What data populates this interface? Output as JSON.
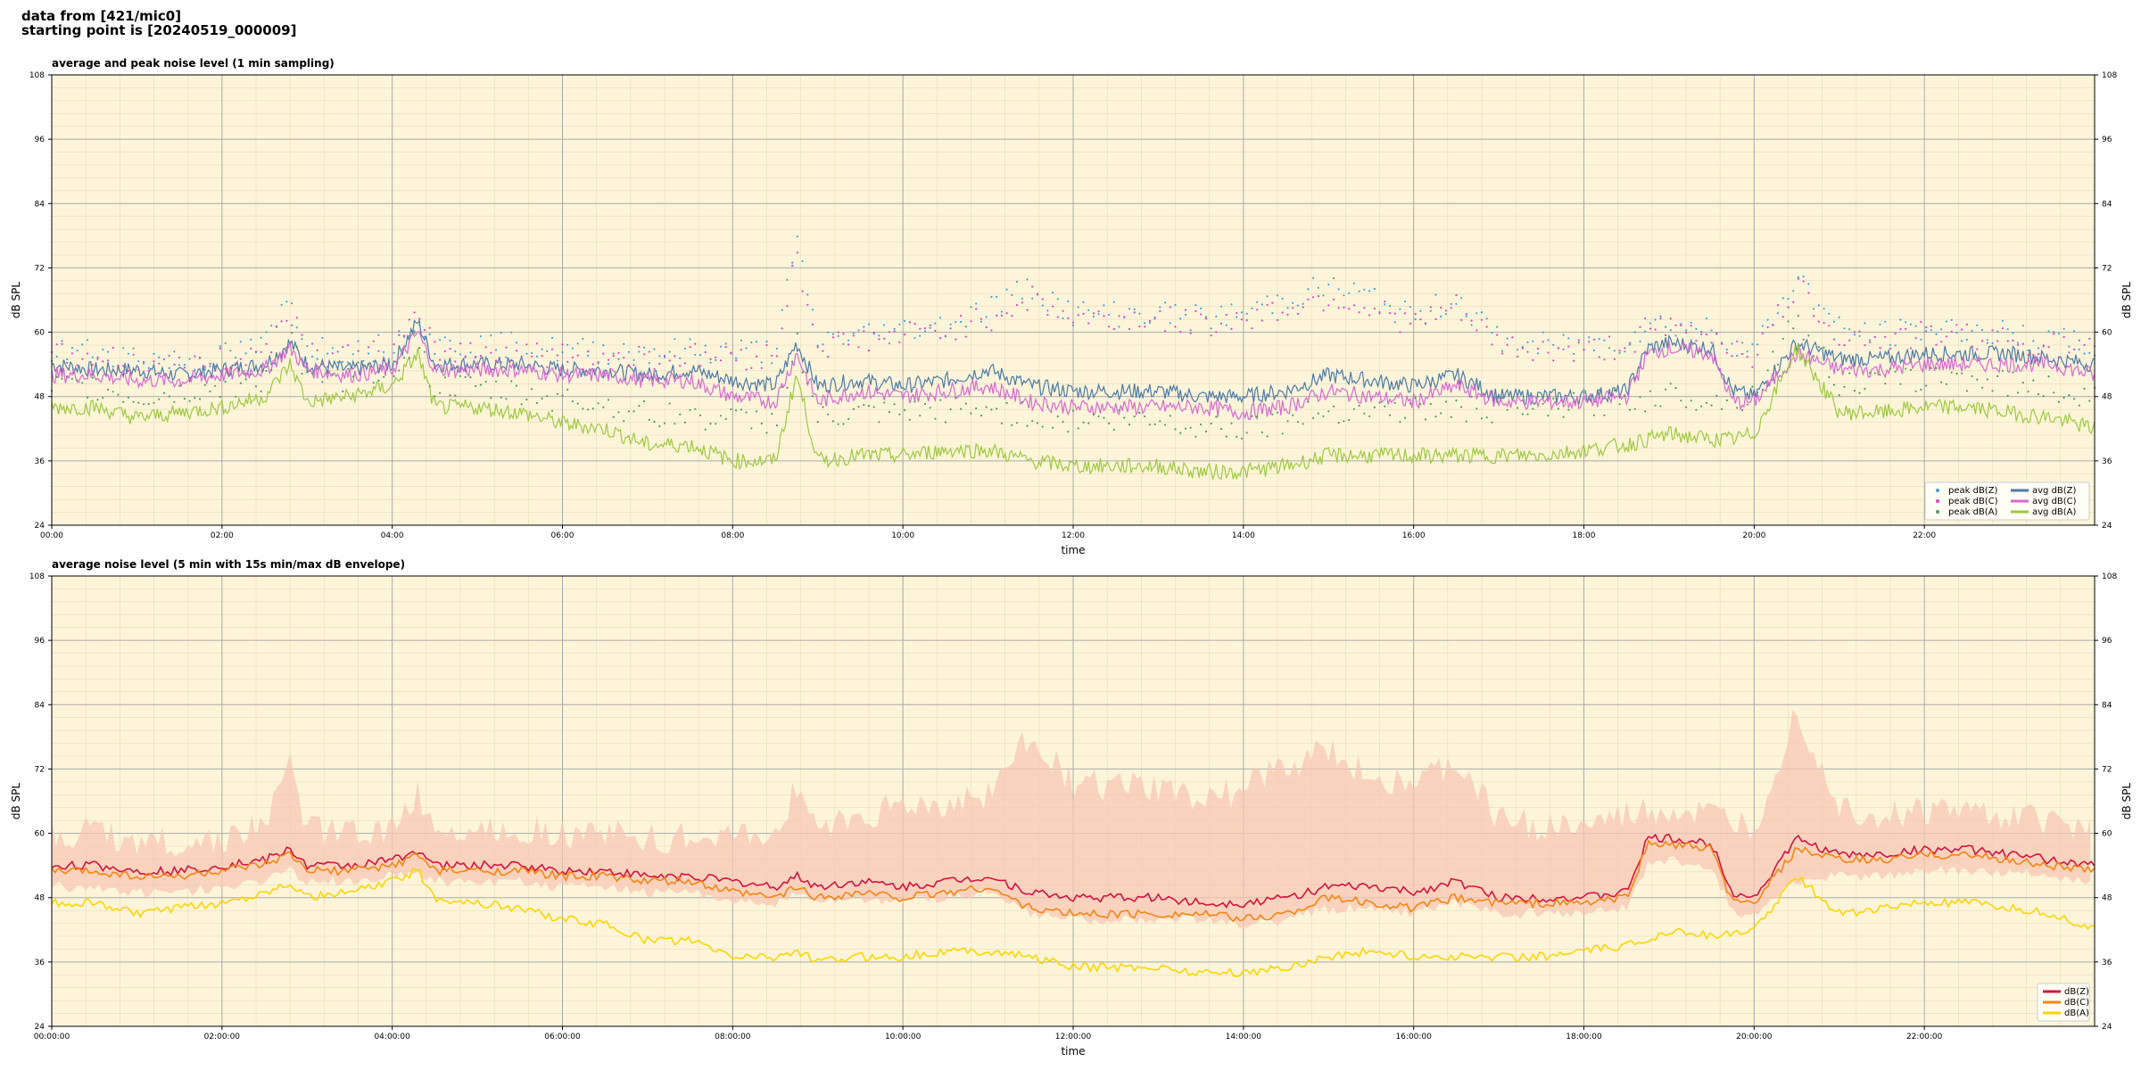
{
  "header": {
    "line1": "data from [421/mic0]",
    "line2": "starting point is [20240519_000009]"
  },
  "chart_data": [
    {
      "type": "line",
      "title": "average and peak noise level (1 min sampling)",
      "xlabel": "time",
      "ylabel": "dB SPL",
      "xlim_hours": [
        0,
        24
      ],
      "ylim": [
        24,
        108
      ],
      "yticks": [
        24,
        36,
        48,
        60,
        72,
        84,
        96,
        108
      ],
      "xticks_hours": [
        0,
        2,
        4,
        6,
        8,
        10,
        12,
        14,
        16,
        18,
        20,
        22
      ],
      "xtick_labels": [
        "00:00",
        "02:00",
        "04:00",
        "06:00",
        "08:00",
        "10:00",
        "12:00",
        "14:00",
        "16:00",
        "18:00",
        "20:00",
        "22:00"
      ],
      "grid": true,
      "legend_position": "lower-right",
      "background": "#fdf5da",
      "x_hours": [
        0,
        0.5,
        1,
        1.5,
        2,
        2.5,
        2.8,
        3,
        3.5,
        4,
        4.3,
        4.5,
        5,
        5.5,
        6,
        6.5,
        7,
        7.5,
        8,
        8.5,
        8.75,
        9,
        9.5,
        10,
        10.5,
        11,
        11.5,
        12,
        12.5,
        13,
        13.5,
        14,
        14.5,
        15,
        15.5,
        16,
        16.5,
        17,
        17.5,
        18,
        18.5,
        18.75,
        19,
        19.5,
        19.75,
        20,
        20.5,
        21,
        21.5,
        22,
        22.5,
        23,
        23.5,
        24
      ],
      "series": [
        {
          "name": "avg dB(Z)",
          "kind": "line",
          "color": "#4a7aa8",
          "values": [
            54,
            53,
            53,
            52,
            53,
            54,
            58,
            54,
            53,
            54,
            62,
            54,
            54,
            54,
            53,
            53,
            52,
            53,
            51,
            50,
            58,
            50,
            51,
            50,
            51,
            53,
            50,
            49,
            49,
            49,
            48,
            48,
            49,
            52,
            51,
            50,
            52,
            48,
            48,
            48,
            49,
            57,
            58,
            57,
            49,
            48,
            58,
            55,
            55,
            56,
            56,
            56,
            55,
            54
          ]
        },
        {
          "name": "avg dB(C)",
          "kind": "line",
          "color": "#d967d4",
          "values": [
            52,
            52,
            51,
            51,
            52,
            53,
            57,
            53,
            52,
            53,
            60,
            53,
            53,
            53,
            52,
            52,
            51,
            51,
            48,
            47,
            56,
            47,
            49,
            48,
            49,
            50,
            47,
            46,
            46,
            46,
            46,
            45,
            46,
            49,
            48,
            47,
            50,
            47,
            47,
            47,
            48,
            56,
            57,
            56,
            47,
            47,
            56,
            53,
            53,
            54,
            54,
            54,
            54,
            52
          ]
        },
        {
          "name": "avg dB(A)",
          "kind": "line",
          "color": "#9dc93f",
          "values": [
            46,
            46,
            44,
            45,
            46,
            48,
            54,
            47,
            48,
            50,
            56,
            46,
            46,
            45,
            43,
            42,
            39,
            39,
            36,
            36,
            52,
            36,
            37,
            37,
            38,
            38,
            36,
            35,
            35,
            35,
            34,
            34,
            35,
            37,
            37,
            37,
            37,
            37,
            37,
            38,
            39,
            40,
            41,
            40,
            40,
            41,
            57,
            45,
            45,
            46,
            46,
            45,
            44,
            42
          ]
        },
        {
          "name": "peak dB(Z)",
          "kind": "points",
          "color": "#3fa2d4",
          "values": [
            56,
            56,
            55,
            54,
            55,
            57,
            66,
            57,
            56,
            57,
            63,
            57,
            57,
            57,
            56,
            56,
            56,
            56,
            56,
            56,
            76,
            58,
            59,
            60,
            61,
            64,
            68,
            63,
            63,
            63,
            62,
            63,
            66,
            68,
            66,
            62,
            66,
            58,
            57,
            57,
            58,
            61,
            61,
            60,
            58,
            56,
            70,
            60,
            59,
            60,
            60,
            59,
            58,
            57
          ]
        },
        {
          "name": "peak dB(C)",
          "kind": "points",
          "color": "#e040c8",
          "values": [
            55,
            55,
            54,
            53,
            54,
            56,
            64,
            56,
            55,
            56,
            62,
            56,
            56,
            56,
            55,
            55,
            55,
            55,
            55,
            55,
            74,
            57,
            58,
            59,
            60,
            62,
            66,
            62,
            62,
            62,
            61,
            62,
            64,
            66,
            64,
            61,
            64,
            57,
            56,
            56,
            57,
            60,
            60,
            59,
            57,
            55,
            68,
            59,
            58,
            59,
            59,
            58,
            57,
            56
          ]
        },
        {
          "name": "peak dB(A)",
          "kind": "points",
          "color": "#4e9a5a",
          "values": [
            49,
            49,
            47,
            48,
            49,
            51,
            59,
            50,
            51,
            53,
            58,
            49,
            49,
            48,
            47,
            46,
            44,
            44,
            43,
            43,
            58,
            43,
            44,
            44,
            45,
            45,
            44,
            43,
            43,
            43,
            42,
            42,
            43,
            45,
            45,
            45,
            45,
            45,
            45,
            46,
            47,
            47,
            48,
            47,
            47,
            48,
            62,
            50,
            50,
            51,
            51,
            50,
            49,
            47
          ]
        }
      ]
    },
    {
      "type": "line",
      "title": "average noise level (5 min with 15s min/max dB envelope)",
      "xlabel": "time",
      "ylabel": "dB SPL",
      "xlim_hours": [
        0,
        24
      ],
      "ylim": [
        24,
        108
      ],
      "yticks": [
        24,
        36,
        48,
        60,
        72,
        84,
        96,
        108
      ],
      "xticks_hours": [
        0,
        2,
        4,
        6,
        8,
        10,
        12,
        14,
        16,
        18,
        20,
        22
      ],
      "xtick_labels": [
        "00:00:00",
        "02:00:00",
        "04:00:00",
        "06:00:00",
        "08:00:00",
        "10:00:00",
        "12:00:00",
        "14:00:00",
        "16:00:00",
        "18:00:00",
        "20:00:00",
        "22:00:00"
      ],
      "grid": true,
      "legend_position": "lower-right",
      "background": "#fdf5da",
      "x_hours": [
        0,
        0.5,
        1,
        1.5,
        2,
        2.5,
        2.8,
        3,
        3.5,
        4,
        4.3,
        4.5,
        5,
        5.5,
        6,
        6.5,
        7,
        7.5,
        8,
        8.5,
        8.75,
        9,
        9.5,
        10,
        10.5,
        11,
        11.5,
        12,
        12.5,
        13,
        13.5,
        14,
        14.5,
        15,
        15.5,
        16,
        16.5,
        17,
        17.5,
        18,
        18.5,
        18.75,
        19,
        19.5,
        19.75,
        20,
        20.5,
        21,
        21.5,
        22,
        22.5,
        23,
        23.5,
        24
      ],
      "envelope": {
        "color": "#f7c7b4",
        "min": [
          51,
          51,
          50,
          50,
          51,
          52,
          54,
          52,
          52,
          53,
          54,
          52,
          52,
          52,
          51,
          51,
          50,
          50,
          48,
          48,
          50,
          48,
          49,
          48,
          49,
          50,
          46,
          45,
          45,
          45,
          45,
          44,
          45,
          47,
          47,
          46,
          48,
          46,
          46,
          46,
          47,
          55,
          56,
          55,
          46,
          46,
          52,
          53,
          53,
          54,
          54,
          54,
          53,
          52
        ],
        "max": [
          57,
          57,
          56,
          55,
          56,
          58,
          70,
          58,
          57,
          58,
          64,
          58,
          58,
          58,
          57,
          57,
          56,
          56,
          56,
          57,
          66,
          58,
          60,
          62,
          62,
          64,
          76,
          66,
          66,
          65,
          64,
          65,
          70,
          72,
          68,
          66,
          70,
          60,
          58,
          58,
          60,
          61,
          61,
          60,
          59,
          58,
          80,
          62,
          60,
          61,
          61,
          60,
          59,
          58
        ]
      },
      "series": [
        {
          "name": "dB(Z)",
          "color": "#d6123f",
          "values": [
            54,
            54,
            53,
            53,
            54,
            55,
            57,
            54,
            54,
            55,
            57,
            54,
            54,
            54,
            53,
            53,
            52,
            52,
            51,
            50,
            52,
            50,
            51,
            50,
            51,
            52,
            49,
            48,
            48,
            48,
            47,
            47,
            48,
            50,
            50,
            49,
            51,
            48,
            48,
            48,
            49,
            59,
            59,
            58,
            49,
            48,
            59,
            56,
            56,
            57,
            57,
            56,
            55,
            54
          ]
        },
        {
          "name": "dB(C)",
          "color": "#f5860f",
          "values": [
            53,
            53,
            52,
            52,
            53,
            54,
            56,
            53,
            53,
            54,
            56,
            53,
            53,
            53,
            52,
            52,
            51,
            51,
            49,
            48,
            50,
            48,
            49,
            48,
            49,
            50,
            46,
            45,
            45,
            45,
            45,
            44,
            45,
            48,
            47,
            46,
            48,
            47,
            47,
            47,
            48,
            58,
            58,
            57,
            47,
            47,
            57,
            55,
            55,
            56,
            56,
            55,
            54,
            53
          ]
        },
        {
          "name": "dB(A)",
          "color": "#ffd500",
          "values": [
            47,
            47,
            45,
            46,
            47,
            49,
            51,
            48,
            49,
            51,
            53,
            48,
            47,
            46,
            44,
            43,
            40,
            40,
            37,
            37,
            38,
            36,
            37,
            37,
            38,
            38,
            37,
            35,
            35,
            35,
            34,
            34,
            35,
            37,
            38,
            37,
            37,
            37,
            37,
            38,
            39,
            40,
            42,
            41,
            41,
            42,
            52,
            45,
            46,
            47,
            47,
            46,
            45,
            42
          ]
        }
      ]
    }
  ]
}
